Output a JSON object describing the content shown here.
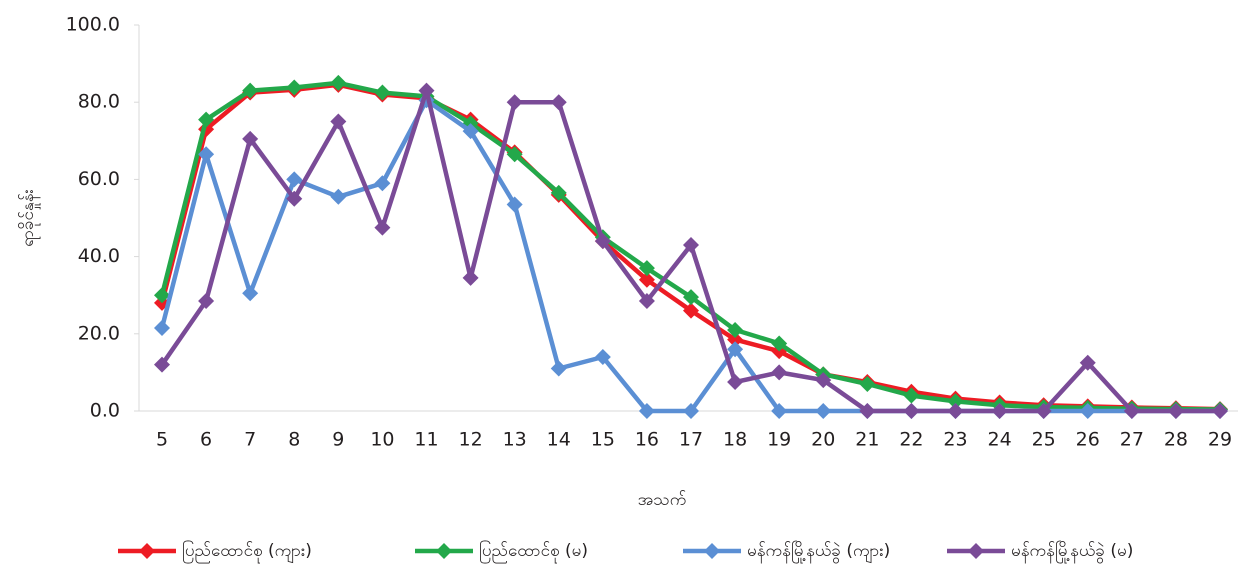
{
  "chart_data": {
    "type": "line",
    "title": "",
    "xlabel": "အသက်",
    "ylabel": "ရာခိုင်နှုန်း",
    "x": [
      5,
      6,
      7,
      8,
      9,
      10,
      11,
      12,
      13,
      14,
      15,
      16,
      17,
      18,
      19,
      20,
      21,
      22,
      23,
      24,
      25,
      26,
      27,
      28,
      29
    ],
    "x_tick_labels": [
      "5",
      "6",
      "7",
      "8",
      "9",
      "10",
      "11",
      "12",
      "13",
      "14",
      "15",
      "16",
      "17",
      "18",
      "19",
      "20",
      "21",
      "22",
      "23",
      "24",
      "25",
      "26",
      "27",
      "28",
      "29"
    ],
    "y_tick_labels": [
      "0.0",
      "20.0",
      "40.0",
      "60.0",
      "80.0",
      "100.0"
    ],
    "ylim": [
      0,
      100
    ],
    "grid": false,
    "legend_position": "bottom",
    "series": [
      {
        "name": "ပြည်ထောင်စု (ကျား)",
        "color": "#ed1c24",
        "values": [
          28.0,
          73.0,
          82.5,
          83.2,
          84.5,
          82.0,
          81.0,
          75.5,
          67.0,
          56.0,
          44.0,
          34.0,
          26.0,
          18.5,
          15.5,
          9.5,
          7.5,
          5.0,
          3.2,
          2.2,
          1.5,
          1.2,
          0.9,
          0.7,
          0.5
        ]
      },
      {
        "name": "ပြည်ထောင်စု (မ)",
        "color": "#23a84a",
        "values": [
          30.0,
          75.5,
          83.0,
          83.8,
          85.0,
          82.5,
          81.5,
          74.5,
          66.5,
          56.5,
          45.0,
          37.0,
          29.5,
          21.0,
          17.5,
          9.5,
          7.0,
          4.0,
          2.5,
          1.5,
          1.0,
          0.8,
          0.6,
          0.5,
          0.4
        ]
      },
      {
        "name": "မန်ကန်မြို့နယ်ခွဲ (ကျား)",
        "color": "#5b8fd4",
        "values": [
          21.5,
          66.5,
          30.5,
          60.0,
          55.5,
          59.0,
          80.5,
          72.5,
          53.5,
          11.0,
          14.0,
          0.0,
          0.0,
          16.0,
          0.0,
          0.0,
          0.0,
          0.0,
          0.0,
          0.0,
          0.0,
          0.0,
          0.0,
          0.0,
          0.0
        ]
      },
      {
        "name": "မန်ကန်မြို့နယ်ခွဲ (မ)",
        "color": "#7a4b97",
        "values": [
          12.0,
          28.5,
          70.5,
          55.0,
          75.0,
          47.5,
          83.0,
          34.5,
          80.0,
          80.0,
          44.0,
          28.5,
          43.0,
          7.5,
          10.0,
          8.0,
          0.0,
          0.0,
          0.0,
          0.0,
          0.0,
          12.5,
          0.0,
          0.0,
          0.0
        ]
      }
    ]
  }
}
